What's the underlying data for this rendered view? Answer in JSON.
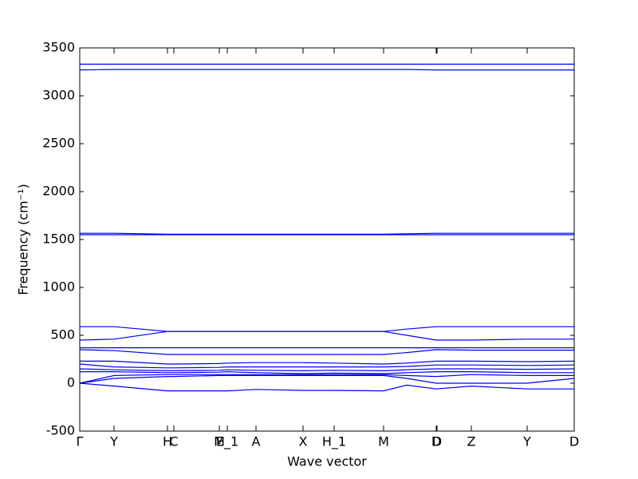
{
  "chart_data": {
    "type": "line",
    "xlabel": "Wave vector",
    "ylabel": "Frequency (cm⁻¹)",
    "color": "#0000ff",
    "x": [
      0,
      0.43,
      1.1,
      1.18,
      1.75,
      1.85,
      2.21,
      2.8,
      3.19,
      3.81,
      4.1,
      4.47,
      4.91,
      5.61,
      6.2
    ],
    "xlim": [
      0,
      6.2
    ],
    "xticks": [
      {
        "value": 0,
        "label": "Γ"
      },
      {
        "value": 0.43,
        "label": "Y"
      },
      {
        "value": 1.1,
        "label": "H"
      },
      {
        "value": 1.18,
        "label": "C"
      },
      {
        "value": 1.75,
        "label": "M"
      },
      {
        "value": 1.85,
        "label": "E_1"
      },
      {
        "value": 2.21,
        "label": "A"
      },
      {
        "value": 2.8,
        "label": "X"
      },
      {
        "value": 3.19,
        "label": "H_1"
      },
      {
        "value": 3.81,
        "label": "M"
      },
      {
        "value": 4.47,
        "label": "D"
      },
      {
        "value": 4.48,
        "label": "D"
      },
      {
        "value": 4.91,
        "label": "Z"
      },
      {
        "value": 5.61,
        "label": "Y"
      },
      {
        "value": 6.2,
        "label": "D"
      }
    ],
    "ylim": [
      -500,
      3500
    ],
    "yticks": [
      -500,
      0,
      500,
      1000,
      1500,
      2000,
      2500,
      3000,
      3500
    ],
    "series": [
      {
        "values": [
          3330,
          3330,
          3330,
          3330,
          3330,
          3330,
          3330,
          3330,
          3330,
          3330,
          3330,
          3330,
          3330,
          3330,
          3330
        ]
      },
      {
        "values": [
          3270,
          3275,
          3275,
          3275,
          3275,
          3275,
          3275,
          3275,
          3275,
          3275,
          3275,
          3270,
          3270,
          3270,
          3270
        ]
      },
      {
        "values": [
          1565,
          1565,
          1555,
          1555,
          1555,
          1555,
          1555,
          1555,
          1555,
          1555,
          1560,
          1565,
          1565,
          1565,
          1565
        ]
      },
      {
        "values": [
          1550,
          1550,
          1550,
          1550,
          1550,
          1550,
          1550,
          1550,
          1550,
          1550,
          1550,
          1550,
          1550,
          1550,
          1550
        ]
      },
      {
        "values": [
          590,
          590,
          540,
          540,
          540,
          540,
          540,
          540,
          540,
          540,
          565,
          590,
          590,
          590,
          590
        ]
      },
      {
        "values": [
          450,
          460,
          540,
          540,
          540,
          540,
          540,
          540,
          540,
          540,
          500,
          450,
          450,
          460,
          460
        ]
      },
      {
        "values": [
          370,
          370,
          370,
          370,
          370,
          370,
          370,
          370,
          370,
          370,
          370,
          370,
          370,
          370,
          370
        ]
      },
      {
        "values": [
          350,
          340,
          300,
          300,
          300,
          300,
          300,
          300,
          300,
          300,
          320,
          350,
          345,
          345,
          345
        ]
      },
      {
        "values": [
          230,
          230,
          200,
          200,
          205,
          210,
          215,
          215,
          210,
          200,
          210,
          230,
          230,
          225,
          230
        ]
      },
      {
        "values": [
          200,
          170,
          160,
          160,
          165,
          170,
          170,
          170,
          170,
          170,
          175,
          190,
          190,
          185,
          190
        ]
      },
      {
        "values": [
          150,
          140,
          130,
          130,
          135,
          140,
          135,
          130,
          135,
          130,
          140,
          150,
          150,
          145,
          150
        ]
      },
      {
        "values": [
          120,
          120,
          110,
          110,
          115,
          120,
          110,
          100,
          105,
          100,
          110,
          120,
          120,
          110,
          110
        ]
      },
      {
        "values": [
          0,
          80,
          90,
          90,
          90,
          90,
          90,
          90,
          90,
          90,
          80,
          70,
          90,
          80,
          80
        ]
      },
      {
        "values": [
          0,
          50,
          70,
          70,
          80,
          80,
          80,
          80,
          80,
          80,
          50,
          0,
          0,
          0,
          50
        ]
      },
      {
        "values": [
          0,
          -30,
          -80,
          -80,
          -80,
          -80,
          -65,
          -75,
          -75,
          -80,
          -20,
          -60,
          -30,
          -60,
          -60
        ]
      }
    ]
  }
}
